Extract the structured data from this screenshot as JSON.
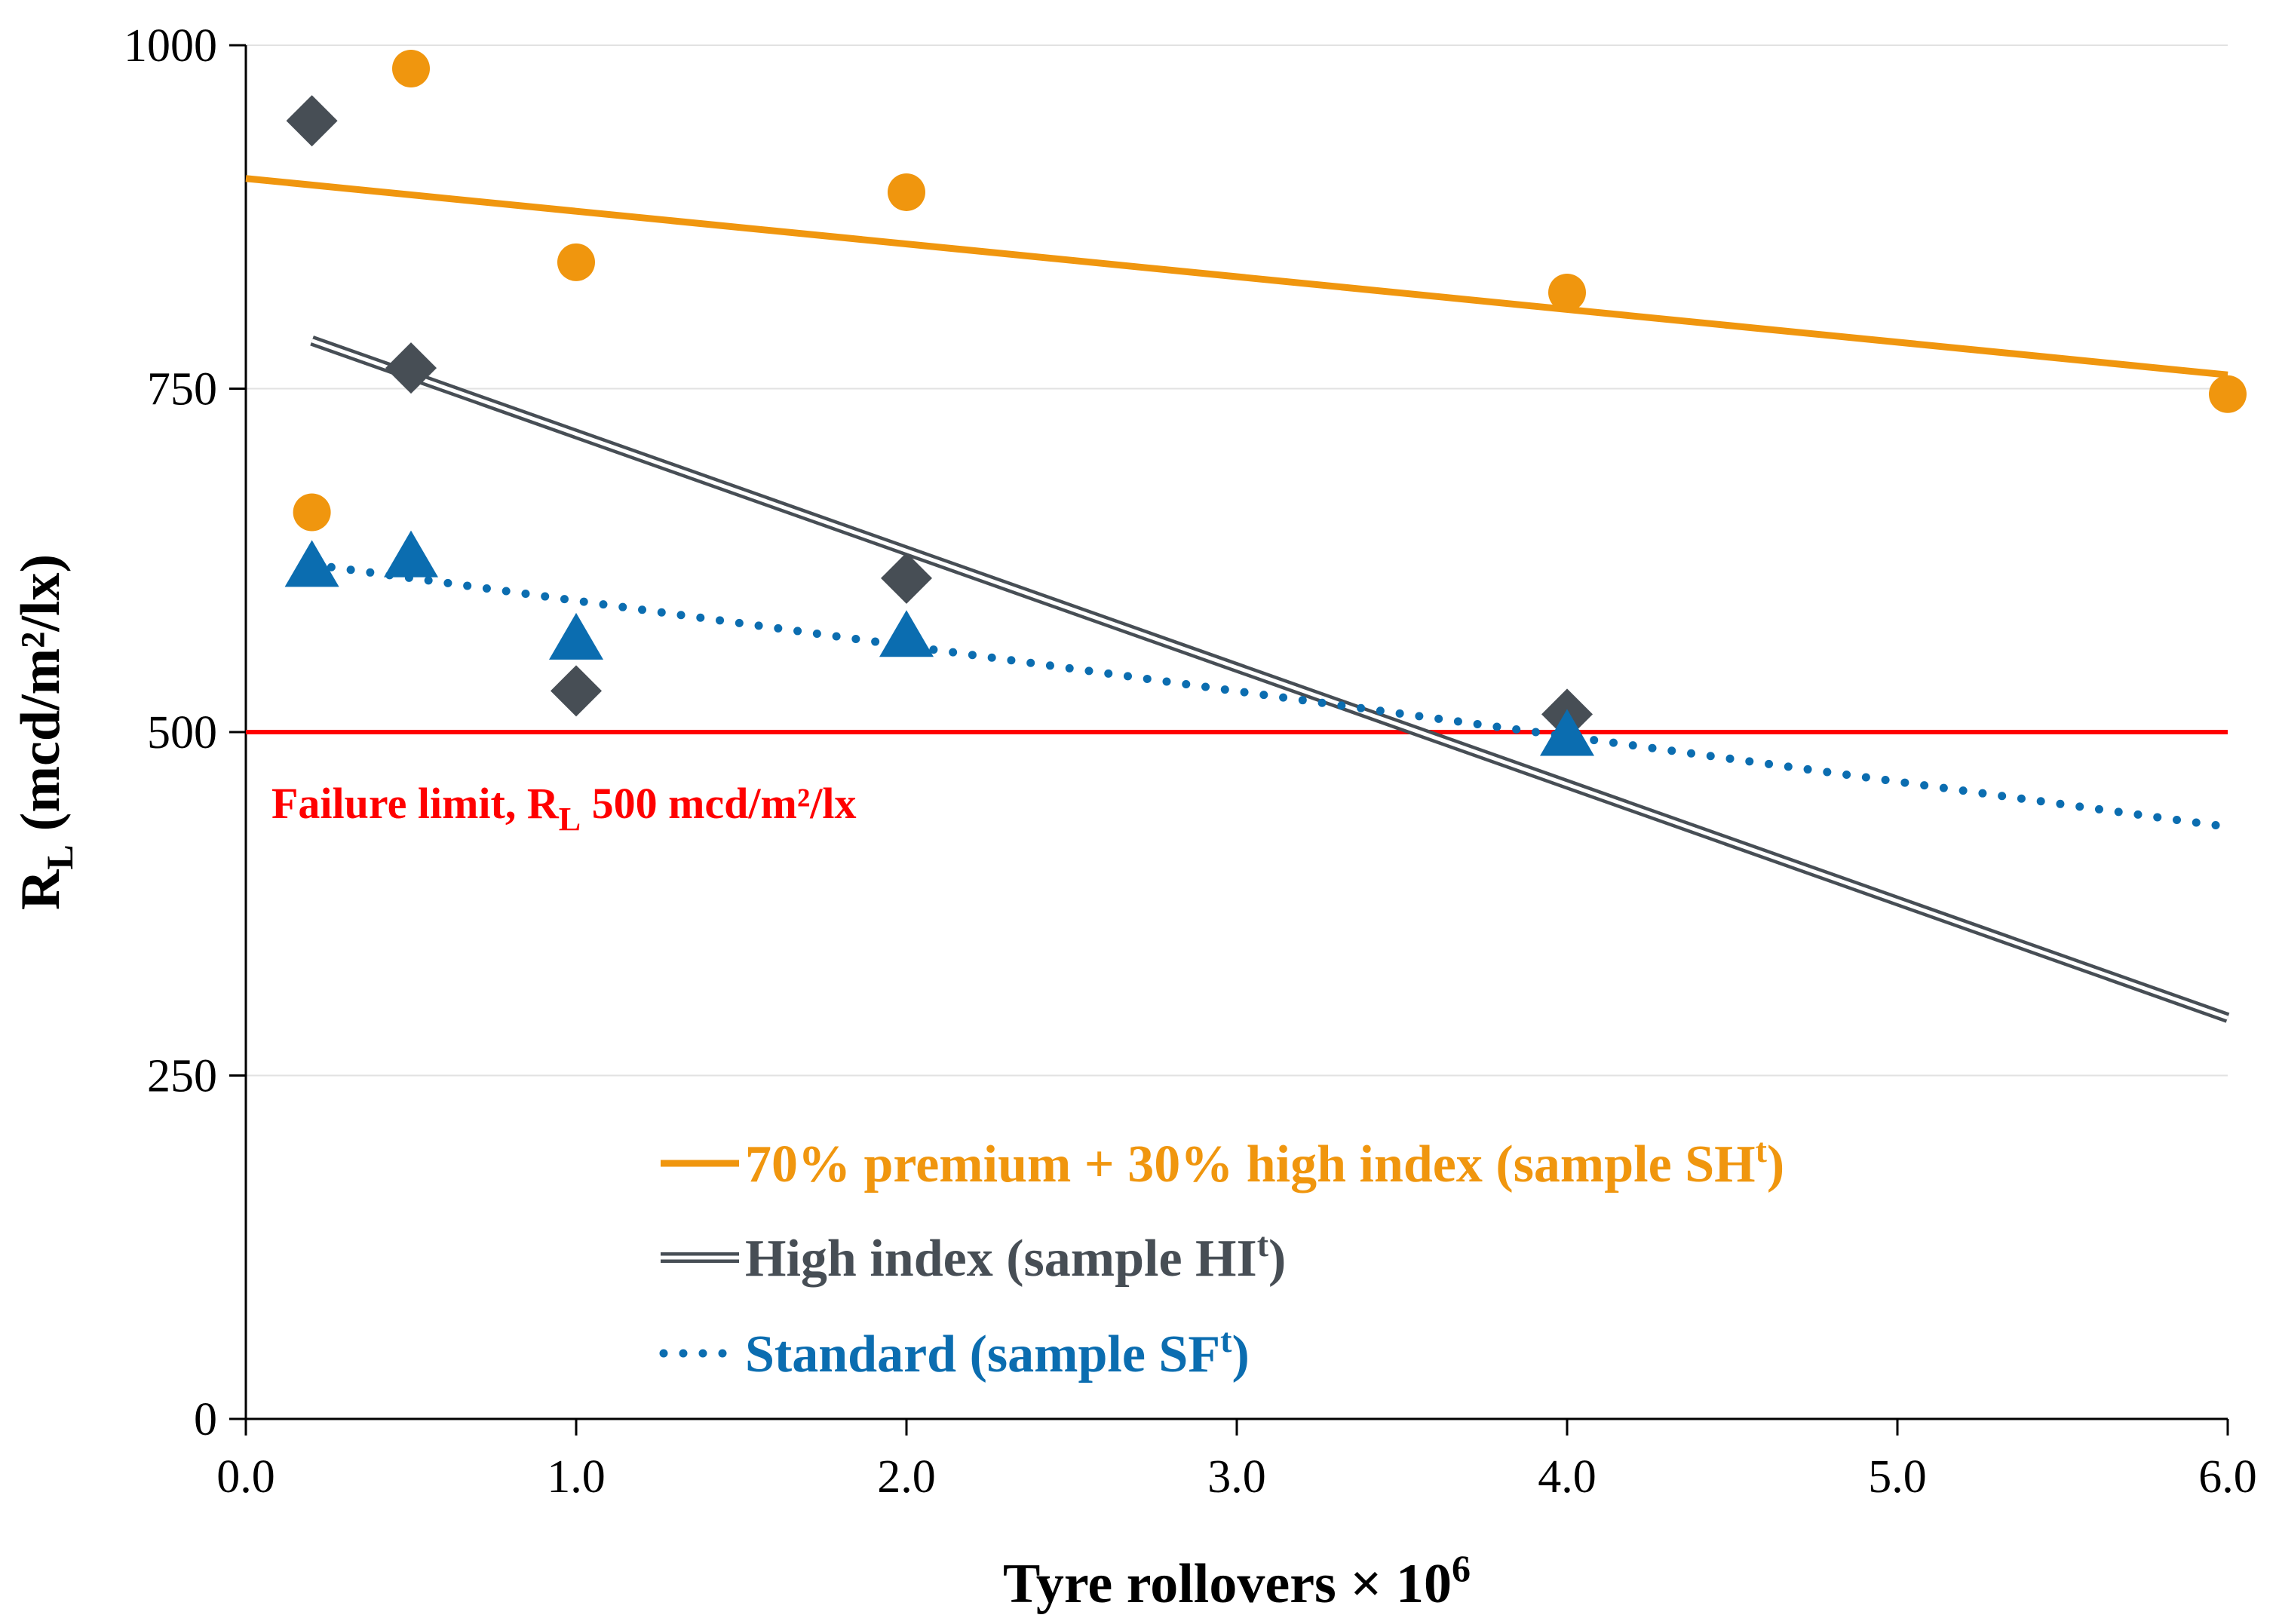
{
  "chart_data": {
    "type": "scatter",
    "xlabel": "Tyre rollovers × 10",
    "xlabel_sup": "6",
    "ylabel": "R",
    "ylabel_sub": "L",
    "ylabel_unit": "(mcd/m²/lx)",
    "xlim": [
      0,
      6
    ],
    "ylim": [
      0,
      1000
    ],
    "x_ticks": [
      "0.0",
      "1.0",
      "2.0",
      "3.0",
      "4.0",
      "5.0",
      "6.0"
    ],
    "y_ticks": [
      "0",
      "250",
      "500",
      "750",
      "1000"
    ],
    "grid": "horizontal",
    "legend_position": "bottom-center",
    "failure_limit": {
      "value": 500,
      "color": "#ff0000",
      "label_a": "Failure limit, R",
      "label_sub": "L",
      "label_b": " 500 mcd/m²/lx"
    },
    "series": [
      {
        "name": "70% premium + 30% high index (sample SH",
        "name_sup": "t",
        "name_end": ")",
        "marker": "circle",
        "color": "#f0960e",
        "line_style": "solid",
        "x": [
          0.2,
          0.5,
          1.0,
          2.0,
          4.0,
          6.0
        ],
        "y": [
          660,
          983,
          842,
          893,
          820,
          746
        ],
        "trend": [
          [
            0,
            903
          ],
          [
            6,
            760
          ]
        ]
      },
      {
        "name": "High index (sample HI",
        "name_sup": "t",
        "name_end": ")",
        "marker": "diamond",
        "color": "#474e55",
        "line_style": "double",
        "x": [
          0.2,
          0.5,
          1.0,
          2.0,
          4.0
        ],
        "y": [
          945,
          765,
          530,
          612,
          513
        ],
        "trend": [
          [
            0.2,
            785
          ],
          [
            6,
            292
          ]
        ]
      },
      {
        "name": "Standard (sample SF",
        "name_sup": "t",
        "name_end": ")",
        "marker": "triangle",
        "color": "#0b6db0",
        "line_style": "dotted",
        "x": [
          0.2,
          0.5,
          1.0,
          2.0,
          4.0
        ],
        "y": [
          620,
          627,
          567,
          569,
          497
        ],
        "trend": [
          [
            0.2,
            622
          ],
          [
            6,
            431
          ]
        ]
      }
    ]
  }
}
